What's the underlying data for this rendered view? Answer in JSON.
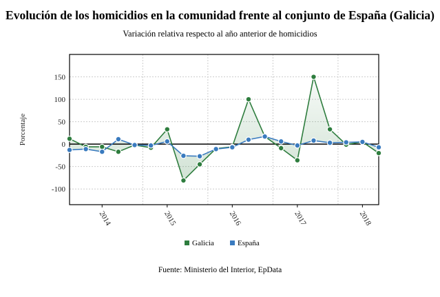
{
  "chart_data": {
    "type": "line",
    "title": "Evolución de los homicidios en la comunidad frente al conjunto de España (Galicia)",
    "subtitle": "Variación relativa respecto al año anterior de homicidios",
    "ylabel": "Porcentaje",
    "xlabel": "",
    "source": "Fuente: Ministerio del Interior, EpData",
    "ylim": [
      -135,
      200
    ],
    "yticks": [
      -100,
      -50,
      0,
      50,
      100,
      150
    ],
    "xtick_labels": [
      "2014",
      "2015",
      "2016",
      "2017",
      "2018"
    ],
    "x": [
      "2013-07",
      "2013-10",
      "2014-01",
      "2014-04",
      "2014-07",
      "2014-10",
      "2015-01",
      "2015-04",
      "2015-07",
      "2015-10",
      "2016-01",
      "2016-04",
      "2016-07",
      "2016-10",
      "2017-01",
      "2017-04",
      "2017-07",
      "2017-10",
      "2018-01",
      "2018-04"
    ],
    "grid": true,
    "legend_position": "bottom",
    "series": [
      {
        "name": "Galicia",
        "color": "#2e7d3e",
        "values": [
          12,
          -6,
          -6,
          -17,
          -2,
          -8,
          33,
          -81,
          -45,
          -10,
          -6,
          100,
          17,
          -9,
          -36,
          150,
          33,
          -1,
          5,
          -20
        ]
      },
      {
        "name": "España",
        "color": "#3a7bbf",
        "values": [
          -13,
          -11,
          -17,
          11,
          -2,
          -3,
          6,
          -26,
          -27,
          -11,
          -7,
          10,
          17,
          6,
          -3,
          8,
          3,
          4,
          5,
          -7
        ]
      }
    ]
  }
}
